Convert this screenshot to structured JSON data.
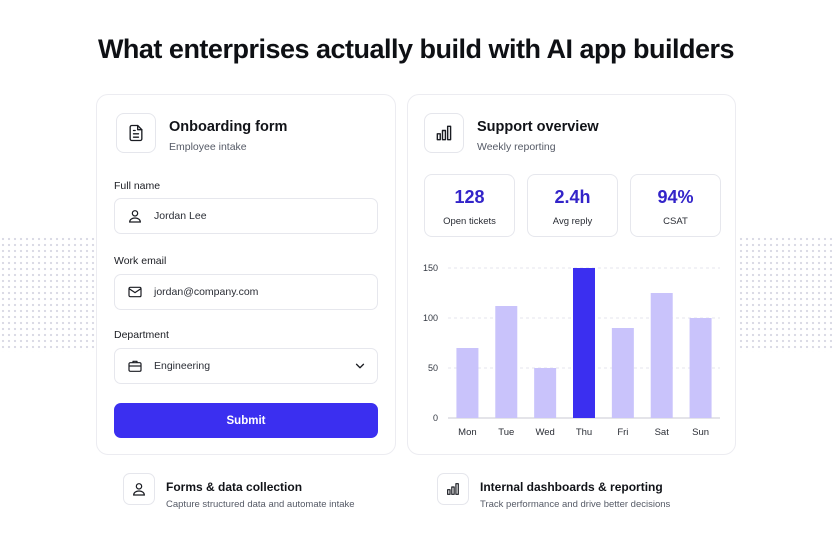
{
  "headline": "What enterprises actually build with AI app builders",
  "form_card": {
    "title": "Onboarding form",
    "subtitle": "Employee intake",
    "icon": "document-icon",
    "fields": [
      {
        "label": "Full name",
        "value": "Jordan Lee",
        "icon": "user-icon"
      },
      {
        "label": "Work email",
        "value": "jordan@company.com",
        "icon": "mail-icon"
      },
      {
        "label": "Department",
        "value": "Engineering",
        "icon": "briefcase-icon"
      }
    ],
    "submit_label": "Submit"
  },
  "support_card": {
    "title": "Support overview",
    "subtitle": "Weekly reporting",
    "icon": "bar-chart-icon",
    "stats": [
      {
        "value": "128",
        "label": "Open tickets"
      },
      {
        "value": "2.4h",
        "label": "Avg reply"
      },
      {
        "value": "94%",
        "label": "CSAT"
      }
    ]
  },
  "chart_data": {
    "type": "bar",
    "title": "",
    "xlabel": "",
    "ylabel": "",
    "categories": [
      "Mon",
      "Tue",
      "Wed",
      "Thu",
      "Fri",
      "Sat",
      "Sun"
    ],
    "values": [
      70,
      112,
      50,
      150,
      90,
      125,
      100
    ],
    "highlight_index": 3,
    "ylim": [
      0,
      150
    ],
    "yticks": [
      0,
      50,
      100,
      150
    ],
    "grid": true,
    "colors": {
      "bar": "#c9c3fb",
      "highlight": "#3b2ff0",
      "grid": "#e4e4ee"
    }
  },
  "features": [
    {
      "title": "Forms & data collection",
      "description": "Capture structured data and automate intake",
      "icon": "user-icon"
    },
    {
      "title": "Internal dashboards & reporting",
      "description": "Track performance and drive better decisions",
      "icon": "bar-chart-icon"
    }
  ],
  "colors": {
    "accent": "#3b2ff0",
    "accent_text": "#3324c9"
  }
}
